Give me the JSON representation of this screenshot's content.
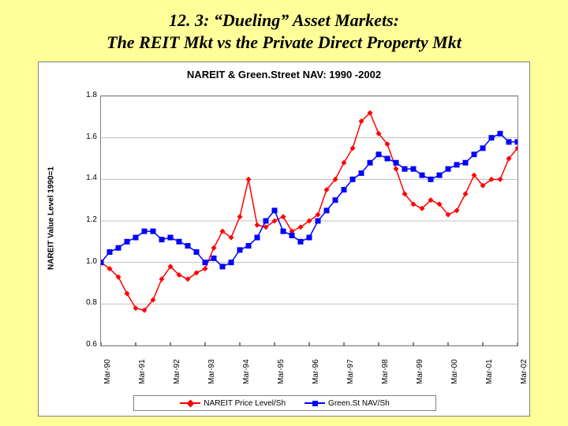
{
  "slide": {
    "title_line1": "12. 3: “Dueling” Asset Markets:",
    "title_line2": "The REIT Mkt vs the Private Direct Property Mkt",
    "background_color": "#ffff99"
  },
  "chart": {
    "type": "line",
    "title": "NAREIT & Green.Street NAV: 1990 -2002",
    "title_fontsize": 13,
    "background_color": "#ffffff",
    "border_color": "#808080",
    "ylabel": "NAREIT Value Level 1990=1",
    "ylabel_fontsize": 10,
    "ylim": [
      0.6,
      1.8
    ],
    "yticks": [
      0.6,
      0.8,
      1.0,
      1.2,
      1.4,
      1.6,
      1.8
    ],
    "ytick_labels": [
      "0.6",
      "0.8",
      "1.0",
      "1.2",
      "1.4",
      "1.6",
      "1.8"
    ],
    "grid_color": "#c0c0c0",
    "x_categories": [
      "Mar-90",
      "Mar-91",
      "Mar-92",
      "Mar-93",
      "Mar-94",
      "Mar-95",
      "Mar-96",
      "Mar-97",
      "Mar-98",
      "Mar-99",
      "Mar-00",
      "Mar-01",
      "Mar-02"
    ],
    "n_points": 49,
    "series": [
      {
        "name": "NAREIT Price Level/Sh",
        "color": "#ff0000",
        "marker": "diamond",
        "marker_size": 7,
        "line_width": 1.5,
        "values": [
          1.0,
          0.97,
          0.93,
          0.85,
          0.78,
          0.77,
          0.82,
          0.92,
          0.98,
          0.94,
          0.92,
          0.95,
          0.97,
          1.07,
          1.15,
          1.12,
          1.22,
          1.4,
          1.18,
          1.17,
          1.2,
          1.22,
          1.15,
          1.17,
          1.2,
          1.23,
          1.35,
          1.4,
          1.48,
          1.55,
          1.68,
          1.72,
          1.62,
          1.57,
          1.45,
          1.33,
          1.28,
          1.26,
          1.3,
          1.28,
          1.23,
          1.25,
          1.33,
          1.42,
          1.37,
          1.4,
          1.4,
          1.5,
          1.55
        ]
      },
      {
        "name": "Green.St NAV/Sh",
        "color": "#0000ff",
        "marker": "square",
        "marker_size": 7,
        "line_width": 1.5,
        "values": [
          1.0,
          1.05,
          1.07,
          1.1,
          1.12,
          1.15,
          1.15,
          1.11,
          1.12,
          1.1,
          1.08,
          1.05,
          1.0,
          1.02,
          0.98,
          1.0,
          1.06,
          1.08,
          1.12,
          1.2,
          1.25,
          1.15,
          1.13,
          1.1,
          1.12,
          1.2,
          1.25,
          1.3,
          1.35,
          1.4,
          1.43,
          1.48,
          1.52,
          1.5,
          1.48,
          1.45,
          1.45,
          1.42,
          1.4,
          1.42,
          1.45,
          1.47,
          1.48,
          1.52,
          1.55,
          1.6,
          1.62,
          1.58,
          1.58
        ]
      }
    ],
    "legend": {
      "items": [
        {
          "label": "NAREIT Price Level/Sh",
          "color": "#ff0000",
          "marker": "diamond"
        },
        {
          "label": "Green.St NAV/Sh",
          "color": "#0000ff",
          "marker": "square"
        }
      ]
    },
    "tick_fontsize": 10,
    "font_family": "Arial"
  }
}
